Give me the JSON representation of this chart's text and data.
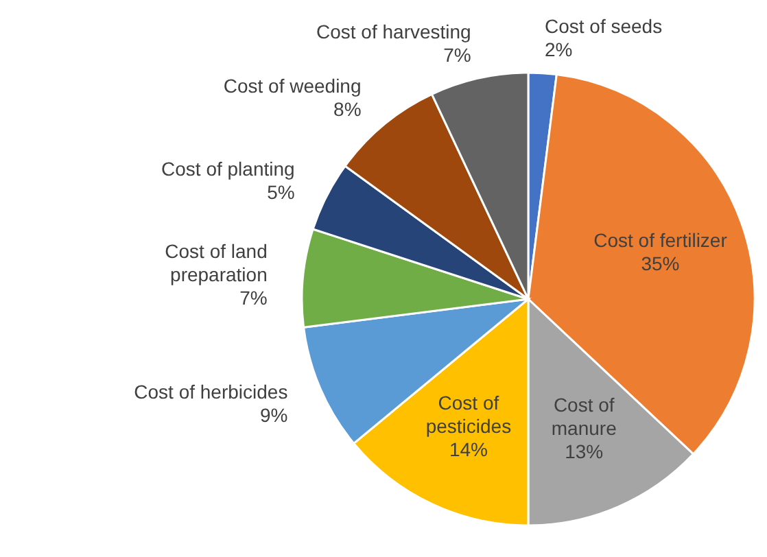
{
  "chart_data": {
    "type": "pie",
    "categories": [
      "Cost of seeds",
      "Cost of fertilizer",
      "Cost of manure",
      "Cost of pesticides",
      "Cost of herbicides",
      "Cost of land preparation",
      "Cost of planting",
      "Cost of weeding",
      "Cost of harvesting"
    ],
    "values": [
      2,
      35,
      13,
      14,
      9,
      7,
      5,
      8,
      7
    ],
    "value_labels": [
      "2%",
      "35%",
      "13%",
      "14%",
      "9%",
      "7%",
      "5%",
      "8%",
      "7%"
    ],
    "colors": [
      "#4472c4",
      "#ed7d31",
      "#a5a5a5",
      "#ffc000",
      "#5b9bd5",
      "#70ad47",
      "#264478",
      "#9e480e",
      "#636363"
    ],
    "legend": false
  }
}
